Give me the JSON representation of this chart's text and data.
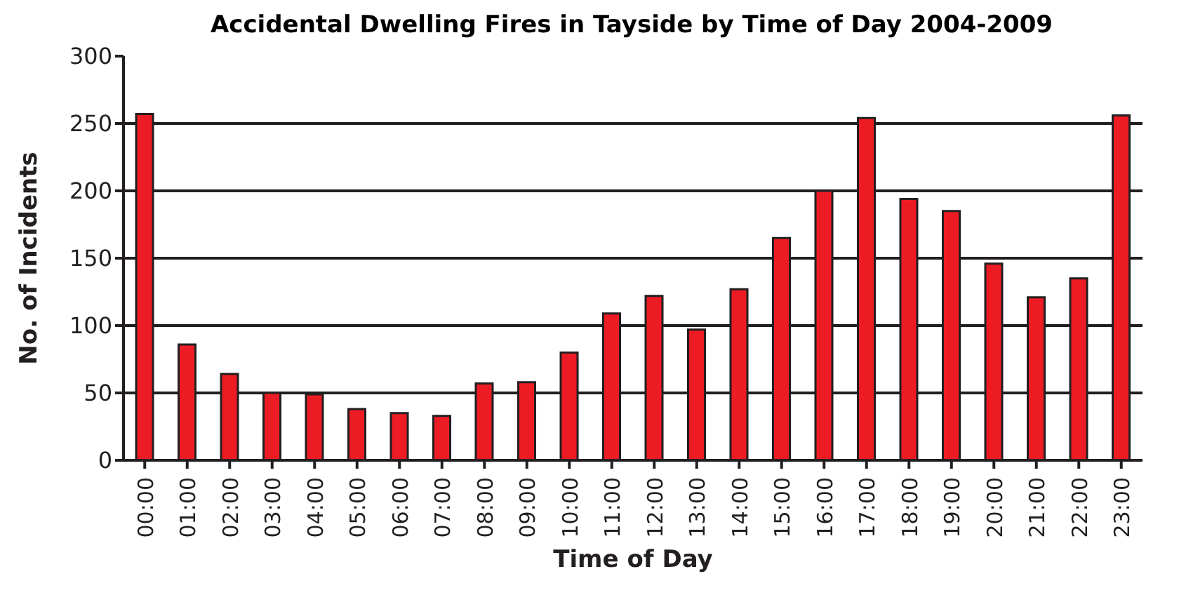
{
  "chart_data": {
    "type": "bar",
    "title": "Accidental Dwelling Fires in Tayside by Time of Day 2004-2009",
    "xlabel": "Time of Day",
    "ylabel": "No. of Incidents",
    "categories": [
      "00:00",
      "01:00",
      "02:00",
      "03:00",
      "04:00",
      "05:00",
      "06:00",
      "07:00",
      "08:00",
      "09:00",
      "10:00",
      "11:00",
      "12:00",
      "13:00",
      "14:00",
      "15:00",
      "16:00",
      "17:00",
      "18:00",
      "19:00",
      "20:00",
      "21:00",
      "22:00",
      "23:00"
    ],
    "values": [
      257,
      86,
      64,
      50,
      49,
      38,
      35,
      33,
      57,
      58,
      80,
      109,
      122,
      97,
      127,
      165,
      200,
      254,
      194,
      185,
      146,
      121,
      135,
      256
    ],
    "color": "#ed1c24",
    "ylim": [
      0,
      300
    ],
    "yticks": [
      0,
      50,
      100,
      150,
      200,
      250,
      300
    ],
    "grid": "y"
  }
}
